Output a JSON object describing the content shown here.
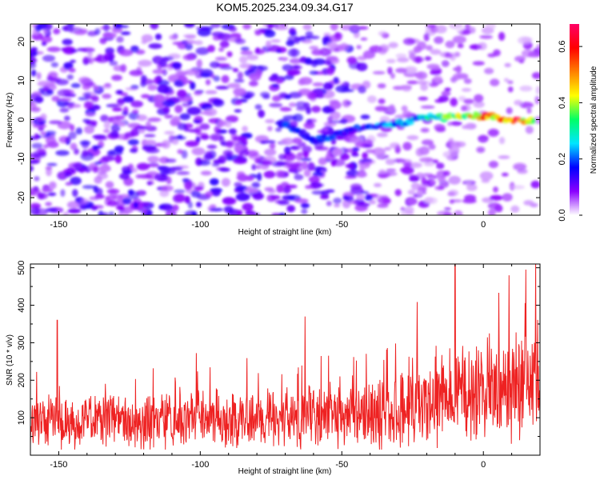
{
  "title": "KOM5.2025.234.09.34.G17",
  "chart_data": [
    {
      "type": "heatmap",
      "title": "KOM5.2025.234.09.34.G17",
      "xlabel": "Height of straight line (km)",
      "ylabel": "Frequency (Hz)",
      "xlim": [
        -160,
        20
      ],
      "ylim": [
        -24.5,
        24.5
      ],
      "x_ticks": [
        -150,
        -100,
        -50,
        0
      ],
      "x_tick_labels": [
        "-150",
        "-100",
        "-50",
        "0"
      ],
      "y_ticks": [
        20,
        10,
        0,
        -10,
        -20
      ],
      "y_tick_labels": [
        "20",
        "10",
        "0",
        "-10",
        "-20"
      ],
      "colorbar": {
        "label": "Normalized spectral amplitude",
        "range": [
          0,
          0.68
        ],
        "ticks": [
          0.0,
          0.2,
          0.4,
          0.6
        ],
        "tick_labels": [
          "0.0",
          "0.2",
          "0.4",
          "0.6"
        ],
        "colors": [
          "#ffffff",
          "#8a00ff",
          "#0000ff",
          "#00e5ff",
          "#00ff66",
          "#ffff00",
          "#ff8000",
          "#ff0000",
          "#ff0066"
        ]
      },
      "signal_track": {
        "x": [
          -72,
          -65,
          -60,
          -55,
          -48,
          -40,
          -30,
          -20,
          -10,
          0,
          10,
          18
        ],
        "freq": [
          -1,
          -3,
          -5.5,
          -4.5,
          -3,
          -1.5,
          -1,
          0.5,
          0.5,
          1,
          0,
          -0.5
        ],
        "amplitude": [
          0.18,
          0.16,
          0.2,
          0.18,
          0.15,
          0.2,
          0.25,
          0.3,
          0.4,
          0.5,
          0.6,
          0.55
        ]
      }
    },
    {
      "type": "line",
      "xlabel": "Height of straight line (km)",
      "ylabel": "SNR (10 * v/v)",
      "xlim": [
        -160,
        20
      ],
      "ylim": [
        0,
        510
      ],
      "x_ticks": [
        -150,
        -100,
        -50,
        0
      ],
      "x_tick_labels": [
        "-150",
        "-100",
        "-50",
        "0"
      ],
      "y_ticks": [
        100,
        200,
        300,
        400,
        500
      ],
      "y_tick_labels": [
        "100",
        "200",
        "300",
        "400",
        "500"
      ],
      "line_color": "#ee2222",
      "series": [
        {
          "name": "SNR",
          "trend_x": [
            -160,
            -120,
            -80,
            -60,
            -40,
            -20,
            0,
            20
          ],
          "trend_mean": [
            85,
            90,
            95,
            100,
            110,
            135,
            170,
            205
          ],
          "trend_spread": [
            55,
            55,
            60,
            65,
            75,
            90,
            110,
            120
          ],
          "spikes": [
            {
              "x": -150.5,
              "y": 360
            },
            {
              "x": -63,
              "y": 370
            },
            {
              "x": -10,
              "y": 510
            },
            {
              "x": 9,
              "y": 480
            },
            {
              "x": 15,
              "y": 495
            }
          ]
        }
      ]
    }
  ]
}
